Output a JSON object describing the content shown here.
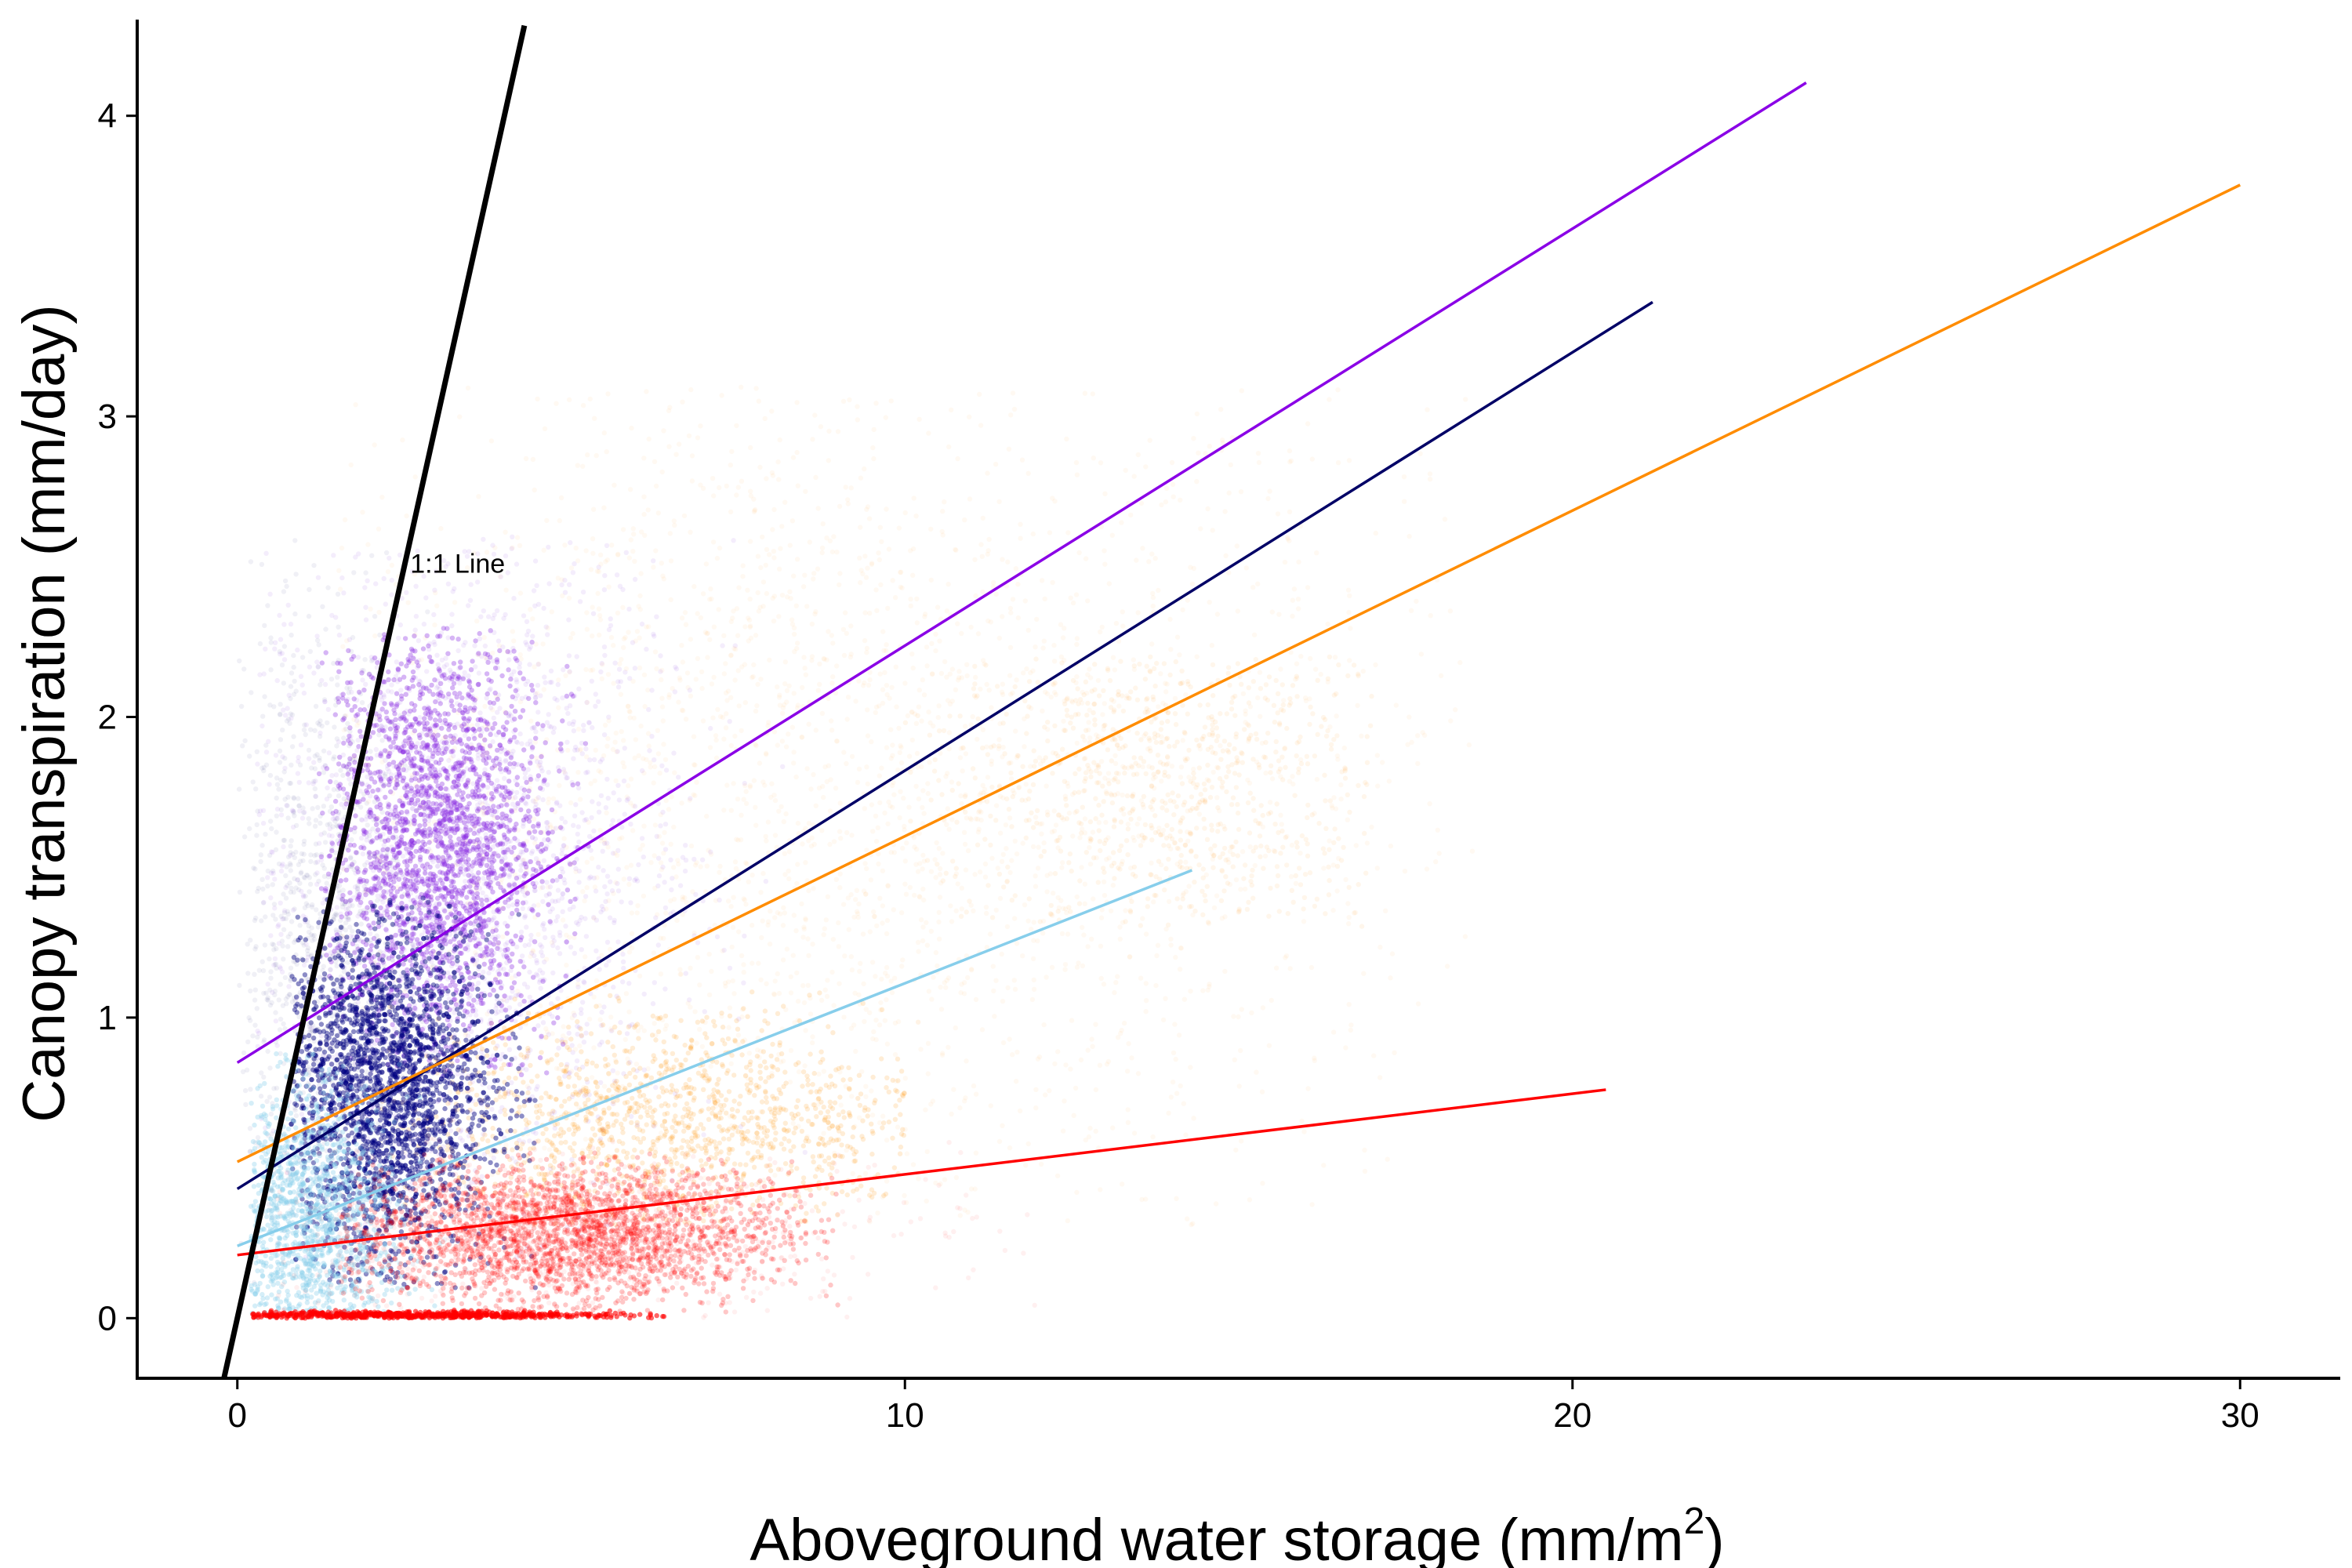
{
  "chart_data": {
    "type": "scatter",
    "xlabel_main": "Aboveground water storage ",
    "xlabel_unit": "(mm/m",
    "xlabel_exp": "2",
    "xlabel_close": ")",
    "ylabel": "Canopy transpiration (mm/day)",
    "xlim": [
      -1.5,
      31.5
    ],
    "ylim": [
      -0.2,
      4.32
    ],
    "x_ticks": [
      0,
      10,
      20,
      30
    ],
    "x_tick_labels": [
      "0",
      "10",
      "20",
      "30"
    ],
    "y_ticks": [
      0,
      1,
      2,
      3,
      4
    ],
    "y_tick_labels": [
      "0",
      "1",
      "2",
      "3",
      "4"
    ],
    "grid": false,
    "legend": "none",
    "one_to_one": {
      "label": "1:1 Line",
      "x": [
        -0.2,
        4.3
      ],
      "y": [
        -0.2,
        4.3
      ],
      "color": "#000000",
      "label_x": 3.3,
      "label_y": 2.48
    },
    "fit_lines": [
      {
        "color": "#8A00E6",
        "x": [
          0,
          23.5
        ],
        "y": [
          0.85,
          4.11
        ]
      },
      {
        "color": "#000066",
        "x": [
          0,
          21.2
        ],
        "y": [
          0.43,
          3.38
        ]
      },
      {
        "color": "#FF8C00",
        "x": [
          0,
          30.0
        ],
        "y": [
          0.52,
          3.77
        ]
      },
      {
        "color": "#87CEEB",
        "x": [
          0,
          14.3
        ],
        "y": [
          0.24,
          1.49
        ]
      },
      {
        "color": "#FF0000",
        "x": [
          0,
          20.5
        ],
        "y": [
          0.21,
          0.76
        ]
      }
    ],
    "point_clouds": [
      {
        "color": "#FF8C00",
        "opacity": 0.05,
        "n": 2600,
        "cx": 9.0,
        "cy": 1.75,
        "sx": 4.6,
        "sy": 0.75,
        "xmin": 1.5,
        "xmax": 18.5,
        "ymin": 0.3,
        "ymax": 3.1
      },
      {
        "color": "#FF8C00",
        "opacity": 0.16,
        "n": 1300,
        "cx": 6.5,
        "cy": 0.65,
        "sx": 2.0,
        "sy": 0.18,
        "xmin": 2.0,
        "xmax": 10.0,
        "ymin": 0.3,
        "ymax": 1.1
      },
      {
        "color": "#FF8C00",
        "opacity": 0.08,
        "n": 800,
        "cx": 14.0,
        "cy": 1.8,
        "sx": 1.8,
        "sy": 0.3,
        "xmin": 10.0,
        "xmax": 17.0,
        "ymin": 1.3,
        "ymax": 2.2
      },
      {
        "color": "#6A00D9",
        "opacity": 0.07,
        "n": 2000,
        "cx": 3.4,
        "cy": 1.5,
        "sx": 1.6,
        "sy": 0.55,
        "xmin": 0.3,
        "xmax": 9.0,
        "ymin": 0.2,
        "ymax": 2.6
      },
      {
        "color": "#8A2BE2",
        "opacity": 0.35,
        "n": 2200,
        "cx": 3.0,
        "cy": 1.6,
        "sx": 0.8,
        "sy": 0.35,
        "xmin": 1.2,
        "xmax": 5.5,
        "ymin": 0.8,
        "ymax": 2.3
      },
      {
        "color": "#000080",
        "opacity": 0.45,
        "n": 2600,
        "cx": 2.2,
        "cy": 0.75,
        "sx": 0.8,
        "sy": 0.3,
        "xmin": 0.8,
        "xmax": 4.5,
        "ymin": 0.1,
        "ymax": 1.4
      },
      {
        "color": "#000066",
        "opacity": 0.06,
        "n": 900,
        "cx": 1.2,
        "cy": 1.3,
        "sx": 0.7,
        "sy": 0.5,
        "xmin": 0.0,
        "xmax": 3.5,
        "ymin": 0.0,
        "ymax": 2.6
      },
      {
        "color": "#87CEEB",
        "opacity": 0.35,
        "n": 1300,
        "cx": 1.0,
        "cy": 0.3,
        "sx": 0.7,
        "sy": 0.25,
        "xmin": 0.2,
        "xmax": 3.5,
        "ymin": 0.0,
        "ymax": 0.9
      },
      {
        "color": "#FF0000",
        "opacity": 0.22,
        "n": 2500,
        "cx": 5.0,
        "cy": 0.28,
        "sx": 1.7,
        "sy": 0.12,
        "xmin": 1.5,
        "xmax": 9.0,
        "ymin": 0.02,
        "ymax": 0.55
      },
      {
        "color": "#FF0000",
        "opacity": 0.06,
        "n": 600,
        "cx": 5.0,
        "cy": 0.25,
        "sx": 3.0,
        "sy": 0.15,
        "xmin": 0.5,
        "xmax": 12.0,
        "ymin": 0.0,
        "ymax": 0.6
      },
      {
        "color": "#FF0000",
        "opacity": 0.6,
        "n": 700,
        "cx": 2.5,
        "cy": 0.01,
        "sx": 1.6,
        "sy": 0.006,
        "xmin": 0.2,
        "xmax": 6.5,
        "ymin": 0.0,
        "ymax": 0.03
      }
    ]
  }
}
